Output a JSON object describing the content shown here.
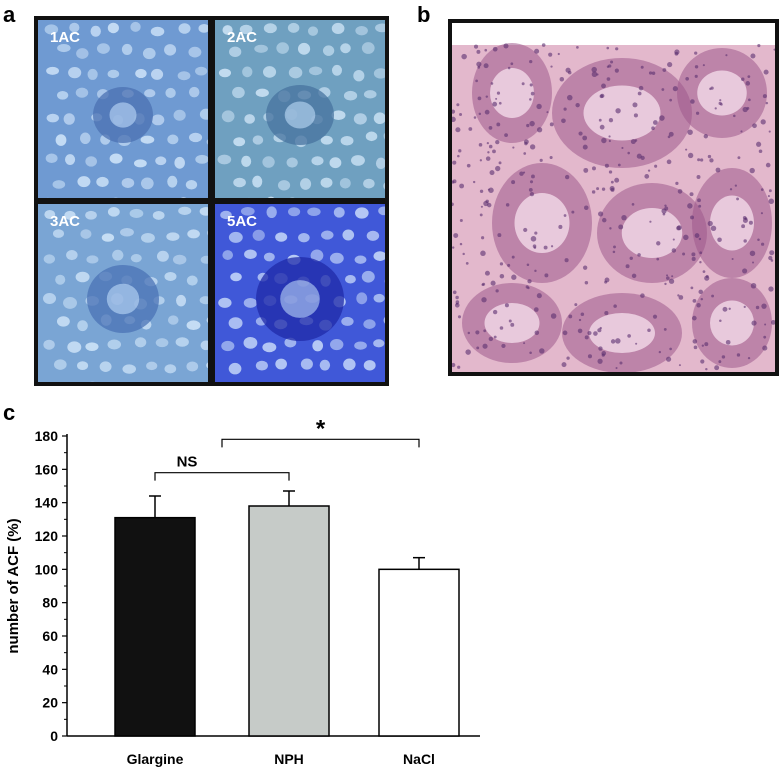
{
  "panels": {
    "a": "a",
    "b": "b",
    "c": "c"
  },
  "micrographs": [
    {
      "label": "1AC",
      "bg": "#6f9ad2",
      "crypt": "#4b70b2"
    },
    {
      "label": "2AC",
      "bg": "#6fa0c0",
      "crypt": "#47739f"
    },
    {
      "label": "3AC",
      "bg": "#7aa5d4",
      "crypt": "#4b73b6"
    },
    {
      "label": "5AC",
      "bg": "#4058d8",
      "crypt": "#1f2aa8"
    }
  ],
  "histology": {
    "bg": "#e3b8cc",
    "gland": "#9e5a8c",
    "nuclei": "#5a2e70"
  },
  "chart_data": {
    "type": "bar",
    "categories": [
      "Glargine",
      "NPH",
      "NaCl"
    ],
    "values": [
      131,
      138,
      100
    ],
    "errors": [
      13,
      9,
      7
    ],
    "colors": [
      "#111111",
      "#c6cbc8",
      "#ffffff"
    ],
    "ylabel": "number of ACF (%)",
    "ylim": [
      0,
      180
    ],
    "yticks": [
      0,
      20,
      40,
      60,
      80,
      100,
      120,
      140,
      160,
      180
    ],
    "annotations": [
      {
        "text": "NS",
        "from": 0,
        "to": 1,
        "level": 158
      },
      {
        "text": "*",
        "from": 0.5,
        "to": 2,
        "level": 178
      }
    ]
  }
}
